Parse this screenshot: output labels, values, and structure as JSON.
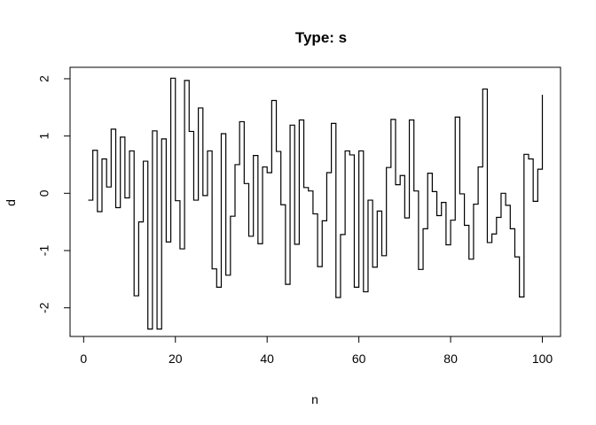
{
  "chart_data": {
    "type": "line",
    "style": "step",
    "title": "Type: s",
    "xlabel": "n",
    "ylabel": "d",
    "xlim": [
      -2.96,
      103.96
    ],
    "ylim": [
      -2.5,
      2.2
    ],
    "xticks": [
      0,
      20,
      40,
      60,
      80,
      100
    ],
    "yticks": [
      -2,
      -1,
      0,
      1,
      2
    ],
    "xtick_labels": [
      "0",
      "20",
      "40",
      "60",
      "80",
      "100"
    ],
    "ytick_labels": [
      "-2",
      "-1",
      "0",
      "1",
      "2"
    ],
    "grid": false,
    "line_color": "#000000",
    "x": [
      1,
      2,
      3,
      4,
      5,
      6,
      7,
      8,
      9,
      10,
      11,
      12,
      13,
      14,
      15,
      16,
      17,
      18,
      19,
      20,
      21,
      22,
      23,
      24,
      25,
      26,
      27,
      28,
      29,
      30,
      31,
      32,
      33,
      34,
      35,
      36,
      37,
      38,
      39,
      40,
      41,
      42,
      43,
      44,
      45,
      46,
      47,
      48,
      49,
      50,
      51,
      52,
      53,
      54,
      55,
      56,
      57,
      58,
      59,
      60,
      61,
      62,
      63,
      64,
      65,
      66,
      67,
      68,
      69,
      70,
      71,
      72,
      73,
      74,
      75,
      76,
      77,
      78,
      79,
      80,
      81,
      82,
      83,
      84,
      85,
      86,
      87,
      88,
      89,
      90,
      91,
      92,
      93,
      94,
      95,
      96,
      97,
      98,
      99,
      100
    ],
    "values": [
      -0.12,
      0.75,
      -0.32,
      0.6,
      0.11,
      1.12,
      -0.25,
      0.98,
      -0.08,
      0.74,
      -1.79,
      -0.5,
      0.56,
      -2.37,
      1.09,
      -2.37,
      0.95,
      -0.85,
      2.01,
      -0.13,
      -0.97,
      1.97,
      1.08,
      -0.12,
      1.49,
      -0.04,
      0.74,
      -1.32,
      -1.64,
      1.04,
      -1.43,
      -0.4,
      0.5,
      1.25,
      0.17,
      -0.75,
      0.66,
      -0.88,
      0.46,
      0.36,
      1.62,
      0.73,
      -0.2,
      -1.59,
      1.19,
      -0.89,
      1.28,
      0.1,
      0.04,
      -0.36,
      -1.28,
      -0.48,
      0.36,
      1.22,
      -1.82,
      -0.72,
      0.74,
      0.67,
      -1.64,
      0.74,
      -1.72,
      -0.12,
      -1.29,
      -0.31,
      -1.09,
      0.45,
      1.29,
      0.15,
      0.31,
      -0.43,
      1.28,
      0.04,
      -1.33,
      -0.62,
      0.35,
      0.03,
      -0.39,
      -0.16,
      -0.9,
      -0.47,
      1.33,
      -0.01,
      -0.56,
      -1.15,
      -0.19,
      0.46,
      1.82,
      -0.86,
      -0.71,
      -0.42,
      0.0,
      -0.21,
      -0.62,
      -1.11,
      -1.81,
      0.68,
      0.6,
      -0.14,
      0.42,
      1.72
    ]
  }
}
